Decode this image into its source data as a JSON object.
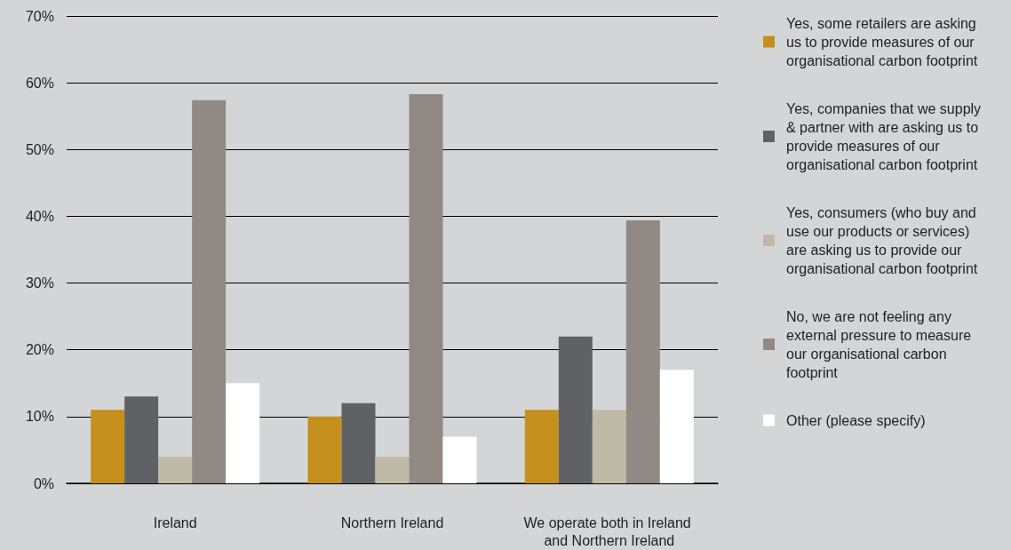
{
  "chart_data": {
    "type": "bar",
    "categories": [
      "Ireland",
      "Northern Ireland",
      "We operate both in Ireland and Northern Ireland"
    ],
    "series": [
      {
        "name": "Yes, some retailers are asking us to provide measures of our organisational carbon footprint",
        "color": "#c48f1c",
        "values": [
          11,
          10,
          11
        ]
      },
      {
        "name": "Yes, companies that we supply & partner with are asking us to provide measures of our organisational carbon footprint",
        "color": "#606164",
        "values": [
          13,
          12,
          22
        ]
      },
      {
        "name": "Yes, consumers (who buy and use our products or services) are asking us to provide our organisational carbon footprint",
        "color": "#bfb9a8",
        "values": [
          4,
          4,
          11
        ]
      },
      {
        "name": "No, we are not feeling any external pressure to measure our organisational carbon footprint",
        "color": "#918983",
        "values": [
          57.4,
          58.3,
          39.4
        ]
      },
      {
        "name": "Other (please specify)",
        "color": "#ffffff",
        "values": [
          15,
          7,
          17
        ]
      }
    ],
    "ylim": [
      0,
      70
    ],
    "yticks": [
      {
        "value": 0,
        "label": "0%"
      },
      {
        "value": 10,
        "label": "10%"
      },
      {
        "value": 20,
        "label": "20%"
      },
      {
        "value": 30,
        "label": "30%"
      },
      {
        "value": 40,
        "label": "40%"
      },
      {
        "value": 50,
        "label": "50%"
      },
      {
        "value": 60,
        "label": "60%"
      },
      {
        "value": 70,
        "label": "70%"
      }
    ],
    "grid": "y",
    "legend": "right"
  }
}
